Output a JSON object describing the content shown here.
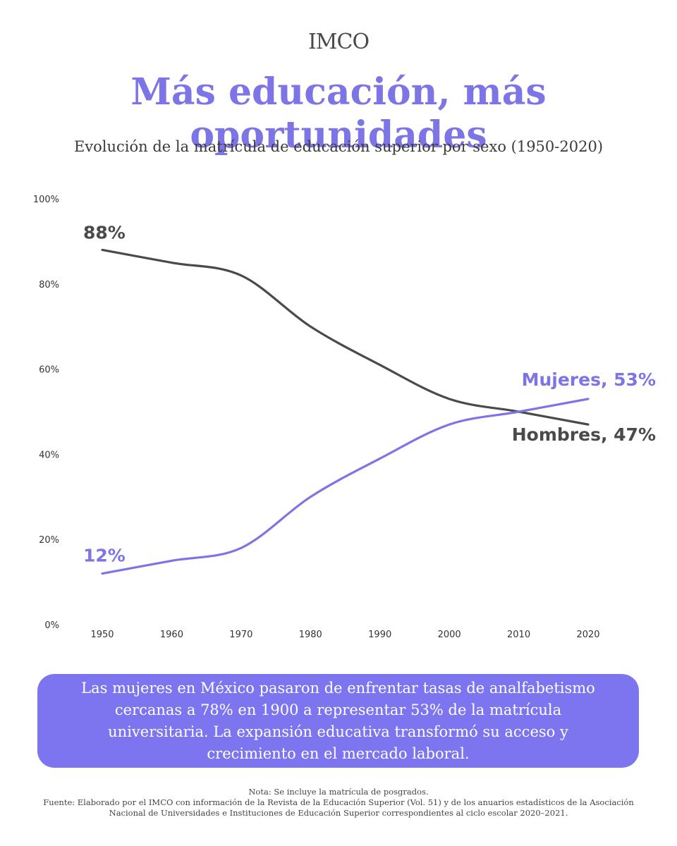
{
  "header": {
    "logo_text": "IMCO",
    "title": "Más educación, más oportunidades",
    "subtitle": "Evolución de la matrícula de educación superior por sexo (1950-2020)"
  },
  "chart_data": {
    "type": "line",
    "title": "Evolución de la matrícula de educación superior por sexo (1950-2020)",
    "x": [
      1950,
      1960,
      1970,
      1980,
      1990,
      2000,
      2010,
      2020
    ],
    "x_tick_labels": [
      "1950",
      "1960",
      "1970",
      "1980",
      "1990",
      "2000",
      "2010",
      "2020"
    ],
    "ylim": [
      0,
      100
    ],
    "y_ticks": [
      0,
      20,
      40,
      60,
      80,
      100
    ],
    "y_tick_labels": [
      "0%",
      "20%",
      "40%",
      "60%",
      "80%",
      "100%"
    ],
    "grid": false,
    "series": [
      {
        "name": "Hombres",
        "color": "#4a4a4a",
        "values": [
          88,
          85,
          82,
          70,
          61,
          53,
          50,
          47
        ],
        "start_label": "88%",
        "end_label": "Hombres, 47%"
      },
      {
        "name": "Mujeres",
        "color": "#7d75e6",
        "values": [
          12,
          15,
          18,
          30,
          39,
          47,
          50,
          53
        ],
        "start_label": "12%",
        "end_label": "Mujeres, 53%"
      }
    ]
  },
  "callout": {
    "text": "Las mujeres en México pasaron de enfrentar tasas de analfabetismo cercanas a 78% en 1900 a representar 53% de la matrícula universitaria. La expansión educativa transformó su acceso y crecimiento en el mercado laboral."
  },
  "footer": {
    "note": "Nota: Se incluye la matrícula de posgrados.",
    "source_line1": "Fuente: Elaborado por el IMCO con información de la Revista de la Educación Superior (Vol. 51) y de los anuarios estadísticos de la Asociación",
    "source_line2": "Nacional de Universidades e Instituciones de Educación Superior correspondientes al ciclo escolar 2020–2021."
  }
}
